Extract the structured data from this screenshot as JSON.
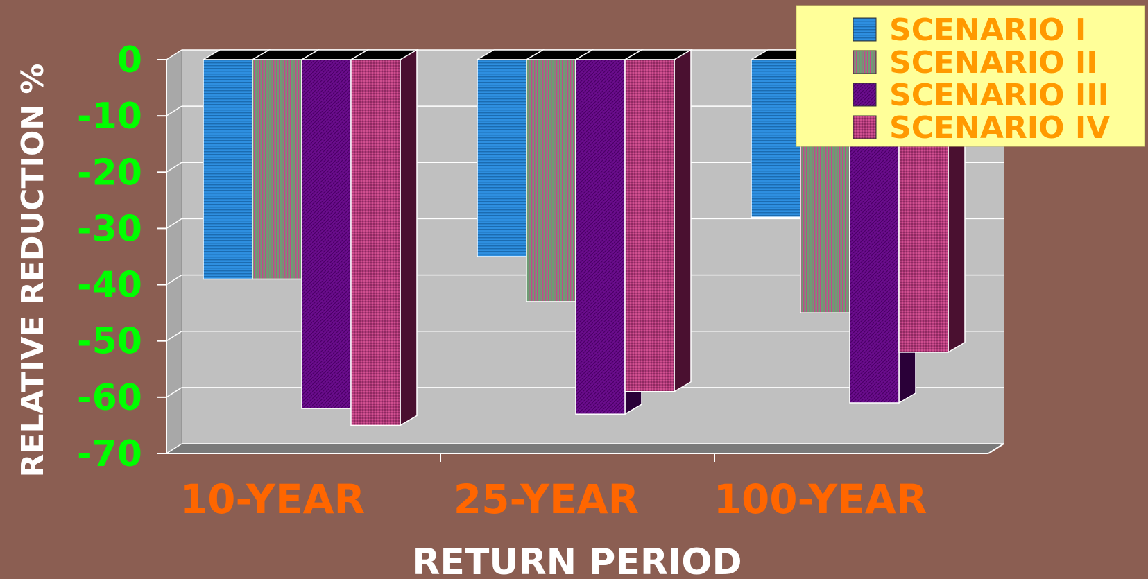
{
  "chart_data": {
    "type": "bar",
    "title": "",
    "xlabel": "RETURN PERIOD",
    "ylabel": "RELATIVE REDUCTION %",
    "categories": [
      "10-YEAR",
      "25-YEAR",
      "100-YEAR"
    ],
    "series": [
      {
        "name": "SCENARIO I",
        "values": [
          -39,
          -35,
          -28
        ]
      },
      {
        "name": "SCENARIO II",
        "values": [
          -39,
          -43,
          -45
        ]
      },
      {
        "name": "SCENARIO III",
        "values": [
          -62,
          -63,
          -61
        ]
      },
      {
        "name": "SCENARIO IV",
        "values": [
          -65,
          -59,
          -52
        ]
      }
    ],
    "ylim": [
      -70,
      0
    ],
    "yticks": [
      "0",
      "-10",
      "-20",
      "-30",
      "-40",
      "-50",
      "-60",
      "-70"
    ],
    "grid": true,
    "legend": "top-right",
    "colors": [
      "#2E86D6",
      "#6E9C74",
      "#6A0D8C",
      "#B03A7A"
    ]
  }
}
